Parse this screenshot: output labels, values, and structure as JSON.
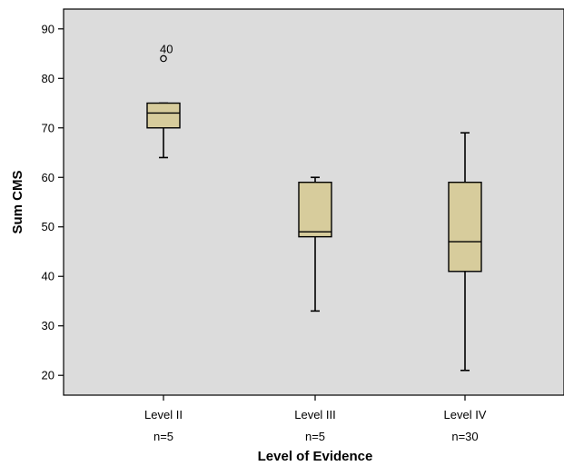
{
  "chart_data": {
    "type": "box",
    "xlabel": "Level of Evidence",
    "ylabel": "Sum CMS",
    "ylim": [
      16,
      94
    ],
    "yticks": [
      20,
      30,
      40,
      50,
      60,
      70,
      80,
      90
    ],
    "grid": false,
    "categories": [
      {
        "label": "Level II",
        "n_label": "n=5",
        "whisker_low": 64,
        "q1": 70,
        "median": 73,
        "q3": 75,
        "whisker_high": 75,
        "outliers": [
          {
            "value": 84,
            "label": "40"
          }
        ]
      },
      {
        "label": "Level III",
        "n_label": "n=5",
        "whisker_low": 33,
        "q1": 48,
        "median": 49,
        "q3": 59,
        "whisker_high": 60,
        "outliers": []
      },
      {
        "label": "Level IV",
        "n_label": "n=30",
        "whisker_low": 21,
        "q1": 41,
        "median": 47,
        "q3": 59,
        "whisker_high": 69,
        "outliers": []
      }
    ]
  },
  "colors": {
    "plot_background": "#dcdcdc",
    "box_fill": "#d7cc9c",
    "line": "#000000"
  }
}
